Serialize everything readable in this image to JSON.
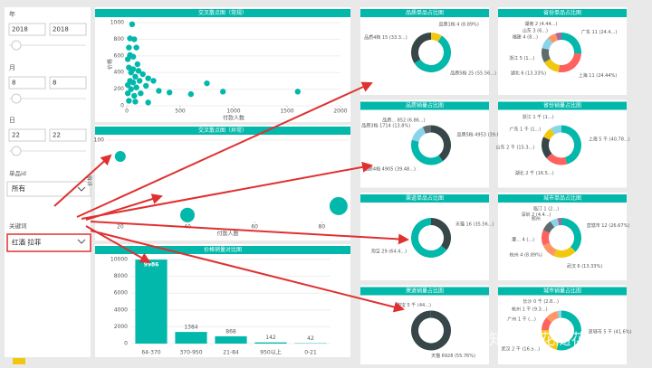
{
  "filters": [
    {
      "label": "年",
      "values": [
        "2018",
        "2018"
      ]
    },
    {
      "label": "月",
      "values": [
        "8",
        "8"
      ]
    },
    {
      "label": "日",
      "values": [
        "22",
        "22"
      ]
    }
  ],
  "dropdowns": [
    {
      "label": "单品id",
      "value": "所有"
    },
    {
      "label": "关键词",
      "value": "红酒 拉菲"
    }
  ],
  "scatter": {
    "title": "交叉散点图（常规）",
    "x_label": "付款人数",
    "y_label": "价格",
    "color": "#01b8aa",
    "x": [
      50,
      30,
      70,
      20,
      90,
      30,
      60,
      10,
      100,
      20,
      60,
      110,
      40,
      150,
      80,
      200,
      30,
      120,
      250,
      60,
      10,
      180,
      90,
      40,
      300,
      10,
      130,
      70,
      400,
      600,
      750,
      900,
      1600,
      20,
      80,
      200
    ],
    "y": [
      980,
      810,
      800,
      700,
      700,
      610,
      590,
      560,
      500,
      460,
      440,
      420,
      400,
      380,
      350,
      330,
      300,
      300,
      300,
      280,
      250,
      240,
      220,
      200,
      180,
      150,
      150,
      120,
      160,
      140,
      270,
      170,
      170,
      60,
      50,
      40
    ],
    "xlim": [
      0,
      2000
    ],
    "xticks": [
      0,
      500,
      1000,
      1500,
      2000
    ],
    "ylim": [
      0,
      1000
    ],
    "yticks": [
      0,
      200,
      400,
      600,
      800,
      1000
    ]
  },
  "bubble": {
    "title": "交叉散点图（异常）",
    "x_label": "付款人数",
    "y_label": "价格",
    "color": "#01b8aa",
    "x": [
      20,
      40,
      85
    ],
    "y": [
      80,
      8,
      19
    ],
    "sizes": [
      6,
      8,
      10
    ],
    "xlim": [
      16,
      88
    ],
    "xticks": [
      20,
      40,
      60,
      80
    ],
    "ylim": [
      0,
      100
    ],
    "yticks": [
      100
    ]
  },
  "bar": {
    "title": "价格销量对比图",
    "color": "#01b8aa",
    "categories": [
      "64-370",
      "370-950",
      "21-84",
      "950以上",
      "0-21"
    ],
    "values": [
      9986,
      1384,
      868,
      142,
      42
    ],
    "ylim": [
      0,
      10000
    ],
    "yticks": [
      0,
      2000,
      4000,
      6000,
      8000,
      10000
    ]
  },
  "donuts": [
    {
      "title": "品质单品占比图",
      "slices": [
        {
          "label": "品质1档 4 (8.89%)",
          "value": 4,
          "color": "#f2c80f"
        },
        {
          "label": "品质5档 25 (55.56...)",
          "value": 25,
          "color": "#01b8aa"
        },
        {
          "label": "品质4档 15 (33.3...)",
          "value": 15,
          "color": "#374649"
        }
      ]
    },
    {
      "title": "省份单品占比图",
      "slices": [
        {
          "label": "广东 11 (24.4...)",
          "value": 11,
          "color": "#01b8aa"
        },
        {
          "label": "上海 11 (24.44%)",
          "value": 11,
          "color": "#fd625e"
        },
        {
          "label": "湖北 6 (13.33%)",
          "value": 6,
          "color": "#f2c80f"
        },
        {
          "label": "浙江 5 (1...)",
          "value": 5,
          "color": "#5f6b6d"
        },
        {
          "label": "福建 4 (8...)",
          "value": 4,
          "color": "#8ad4eb"
        },
        {
          "label": "山东 3 (6...)",
          "value": 3,
          "color": "#fe9666"
        },
        {
          "label": "湖南 2 (4.44...)",
          "value": 2,
          "color": "#a66999"
        }
      ]
    },
    {
      "title": "品质销量占比图",
      "slices": [
        {
          "label": "品质5档 4953 (39.87...)",
          "value": 4953,
          "color": "#374649"
        },
        {
          "label": "品质4档 4905 (39.48...)",
          "value": 4905,
          "color": "#01b8aa"
        },
        {
          "label": "品质3档 1714 (13.8%)",
          "value": 1714,
          "color": "#8ad4eb"
        },
        {
          "label": "品质... 852 (6.86...)",
          "value": 852,
          "color": "#5f6b6d"
        }
      ]
    },
    {
      "title": "省份销量占比图",
      "slices": [
        {
          "label": "上海 5 千 (40.78...)",
          "value": 5,
          "color": "#01b8aa"
        },
        {
          "label": "湖北 2 千 (16.5...)",
          "value": 2,
          "color": "#fd625e"
        },
        {
          "label": "山东 2 千 (15.3...)",
          "value": 2,
          "color": "#374649"
        },
        {
          "label": "广东 1 千 (1...)",
          "value": 1,
          "color": "#f2c80f"
        },
        {
          "label": "浙江 1 千 (1...)",
          "value": 1,
          "color": "#8ad4eb"
        }
      ]
    },
    {
      "title": "渠道单品占比图",
      "slices": [
        {
          "label": "天猫 16 (35.56...)",
          "value": 16,
          "color": "#374649"
        },
        {
          "label": "淘宝 29 (64.4...)",
          "value": 29,
          "color": "#01b8aa"
        }
      ]
    },
    {
      "title": "城市单品占比图",
      "slices": [
        {
          "label": "直辖市 12 (26.67%)",
          "value": 12,
          "color": "#01b8aa"
        },
        {
          "label": "武汉 6 (13.33%)",
          "value": 6,
          "color": "#f2c80f"
        },
        {
          "label": "杭州 4 (8.89%)",
          "value": 4,
          "color": "#fe9666"
        },
        {
          "label": "厦... 4 (...)",
          "value": 4,
          "color": "#fd625e"
        },
        {
          "label": "郑州",
          "value": 3,
          "color": "#5f6b6d"
        },
        {
          "label": "深圳 2 (4.4...)",
          "value": 2,
          "color": "#8ad4eb"
        },
        {
          "label": "临汀 1 (2...)",
          "value": 1,
          "color": "#a66999"
        }
      ]
    },
    {
      "title": "渠道销量占比图",
      "slices": [
        {
          "label": "天猫 6928 (55.76%)",
          "value": 6928,
          "color": "#374649"
        },
        {
          "label": "淘宝 5 千 (44...)",
          "value": 5,
          "color": "#01b8aa"
        }
      ]
    },
    {
      "title": "城市销量占比图",
      "slices": [
        {
          "label": "直辖市 5 千 (41.6%)",
          "value": 5,
          "color": "#01b8aa"
        },
        {
          "label": "武汉 2 千 (16.5...)",
          "value": 2,
          "color": "#f2c80f"
        },
        {
          "label": "广州 1 千 (...)",
          "value": 1,
          "color": "#fd625e"
        },
        {
          "label": "杭州 1 千 (9.3...)",
          "value": 1,
          "color": "#fe9666"
        },
        {
          "label": "长沙 0 千 (2.8...)",
          "value": 0.3,
          "color": "#8ad4eb"
        }
      ]
    }
  ],
  "watermark": "知乎 @花随花心"
}
